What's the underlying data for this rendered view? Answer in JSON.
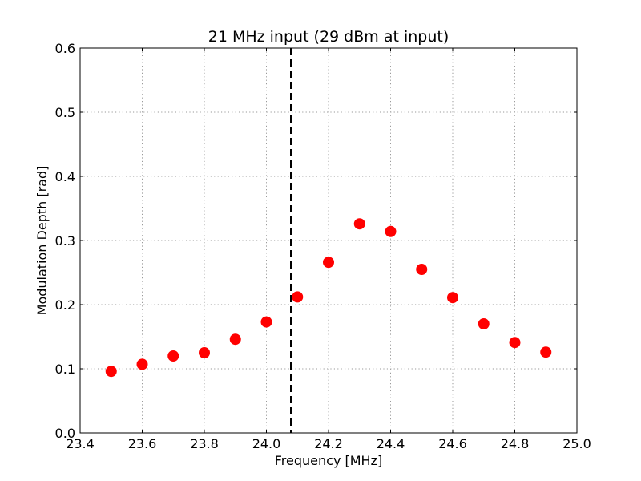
{
  "chart_data": {
    "type": "scatter",
    "title": "21 MHz input (29 dBm at input)",
    "xlabel": "Frequency [MHz]",
    "ylabel": "Modulation Depth [rad]",
    "xlim": [
      23.4,
      25.0
    ],
    "ylim": [
      0.0,
      0.6
    ],
    "x_ticks": [
      "23.4",
      "23.6",
      "23.8",
      "24.0",
      "24.2",
      "24.4",
      "24.6",
      "24.8",
      "25.0"
    ],
    "y_ticks": [
      "0.0",
      "0.1",
      "0.2",
      "0.3",
      "0.4",
      "0.5",
      "0.6"
    ],
    "grid": true,
    "legend": "none",
    "series": [
      {
        "color": "#ff0000",
        "marker": "circle",
        "x": [
          23.5,
          23.6,
          23.7,
          23.8,
          23.9,
          24.0,
          24.1,
          24.2,
          24.3,
          24.4,
          24.5,
          24.6,
          24.7,
          24.8,
          24.9
        ],
        "y": [
          0.096,
          0.107,
          0.12,
          0.125,
          0.146,
          0.173,
          0.212,
          0.266,
          0.326,
          0.314,
          0.255,
          0.211,
          0.17,
          0.141,
          0.126
        ]
      }
    ],
    "vertical_line": {
      "x": 24.08,
      "color": "#000000",
      "style": "dashed"
    }
  }
}
